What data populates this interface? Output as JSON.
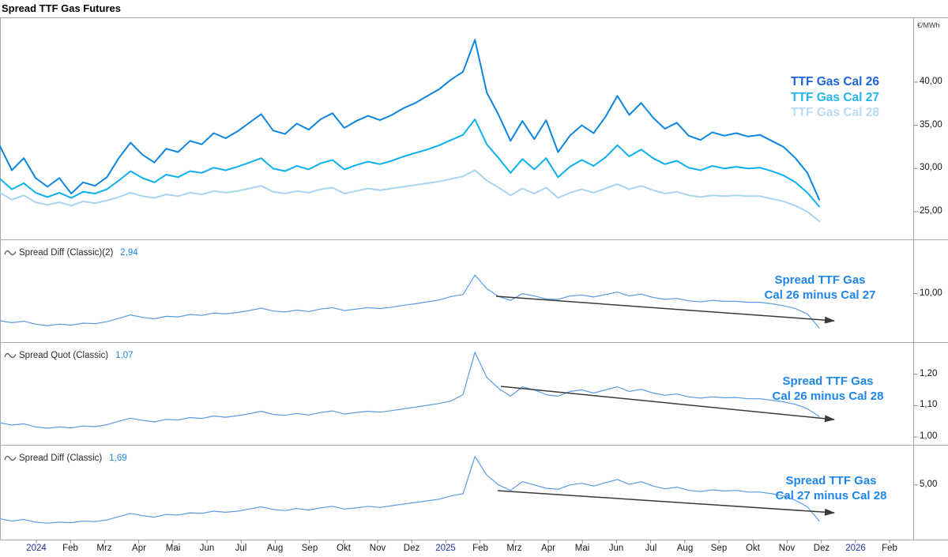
{
  "title": "Spread TTF Gas Futures",
  "colors": {
    "cal26_line": "#0d86e2",
    "cal27_line": "#0ab0ef",
    "cal28_line": "#a9d4ef",
    "spread_line": "#5b9ce4",
    "annotation_blue": "#1e86e8",
    "value_blue": "#1e86e8",
    "arrow": "#3a3a3a",
    "border": "#a8a8a8",
    "tick": "#888888",
    "year_label": "#2433a2",
    "month_label": "#1a1a1a"
  },
  "legend": {
    "items": [
      {
        "label": "TTF Gas Cal 26"
      },
      {
        "label": "TTF Gas Cal 27"
      },
      {
        "label": "TTF Gas Cal 28"
      }
    ]
  },
  "x_axis": {
    "labels": [
      "2024",
      "Feb",
      "Mrz",
      "Apr",
      "Mai",
      "Jun",
      "Jul",
      "Aug",
      "Sep",
      "Okt",
      "Nov",
      "Dez",
      "2025",
      "Feb",
      "Mrz",
      "Apr",
      "Mai",
      "Jun",
      "Jul",
      "Aug",
      "Sep",
      "Okt",
      "Nov",
      "Dez",
      "2026",
      "Feb"
    ]
  },
  "chart_data": [
    {
      "type": "line",
      "ylabel": "€/MWh",
      "ylim": [
        21.8,
        47.4
      ],
      "yticks": [
        {
          "label": "40,00",
          "value": 40
        },
        {
          "label": "35,00",
          "value": 35
        },
        {
          "label": "30,00",
          "value": 30
        },
        {
          "label": "25,00",
          "value": 25
        }
      ],
      "series": [
        {
          "id": "ttf-gas-cal-28",
          "name": "TTF Gas Cal 28",
          "color": "#a9d4ef",
          "legend_color": "#b9dcf4",
          "width": 2,
          "values": [
            27.2,
            26.4,
            26.9,
            26.1,
            25.8,
            26.1,
            25.7,
            26.2,
            26.0,
            26.3,
            26.7,
            27.2,
            26.8,
            26.6,
            27.0,
            26.8,
            27.2,
            27.0,
            27.4,
            27.2,
            27.4,
            27.7,
            28.0,
            27.3,
            27.1,
            27.4,
            27.2,
            27.6,
            27.8,
            27.1,
            27.4,
            27.7,
            27.5,
            27.7,
            27.9,
            28.1,
            28.3,
            28.5,
            28.8,
            29.1,
            29.8,
            28.6,
            27.8,
            26.9,
            27.7,
            27.1,
            27.8,
            26.6,
            27.2,
            27.6,
            27.2,
            27.7,
            28.2,
            27.6,
            28.0,
            27.5,
            27.1,
            27.3,
            26.9,
            26.7,
            26.9,
            26.8,
            26.9,
            26.8,
            26.8,
            26.5,
            26.2,
            25.7,
            25.0,
            23.9
          ]
        },
        {
          "id": "ttf-gas-cal-27",
          "name": "TTF Gas Cal 27",
          "color": "#0ab0ef",
          "legend_color": "#22b7f2",
          "width": 2,
          "values": [
            28.8,
            27.6,
            28.3,
            27.2,
            26.7,
            27.2,
            26.6,
            27.3,
            27.1,
            27.6,
            28.6,
            29.7,
            28.9,
            28.4,
            29.3,
            29.0,
            29.7,
            29.5,
            30.1,
            29.8,
            30.2,
            30.7,
            31.2,
            30.0,
            29.7,
            30.3,
            29.9,
            30.6,
            31.0,
            29.9,
            30.4,
            30.8,
            30.5,
            30.9,
            31.4,
            31.8,
            32.2,
            32.7,
            33.3,
            33.9,
            35.7,
            32.8,
            31.2,
            29.5,
            31.1,
            29.9,
            31.2,
            29.0,
            30.2,
            31.0,
            30.3,
            31.3,
            32.7,
            31.4,
            32.2,
            31.2,
            30.5,
            30.9,
            30.1,
            29.8,
            30.3,
            30.0,
            30.2,
            30.0,
            30.1,
            29.7,
            29.2,
            28.4,
            27.2,
            25.6
          ]
        },
        {
          "id": "ttf-gas-cal-26",
          "name": "TTF Gas Cal 26",
          "color": "#0d86e2",
          "legend_color": "#1a66d9",
          "width": 2,
          "values": [
            32.6,
            29.8,
            31.2,
            28.9,
            27.9,
            28.9,
            27.1,
            28.4,
            28.0,
            29.0,
            31.2,
            33.0,
            31.6,
            30.7,
            32.3,
            31.9,
            33.2,
            32.8,
            34.1,
            33.5,
            34.3,
            35.3,
            36.3,
            34.4,
            34.0,
            35.2,
            34.5,
            35.7,
            36.4,
            34.7,
            35.5,
            36.1,
            35.6,
            36.2,
            37.0,
            37.6,
            38.4,
            39.2,
            40.3,
            41.2,
            44.9,
            38.8,
            36.2,
            33.2,
            35.5,
            33.4,
            35.6,
            31.9,
            33.8,
            35.0,
            34.1,
            36.0,
            38.4,
            36.2,
            37.6,
            35.9,
            34.6,
            35.3,
            33.8,
            33.3,
            34.2,
            33.8,
            34.1,
            33.7,
            33.9,
            33.2,
            32.5,
            31.2,
            29.5,
            26.4
          ]
        }
      ]
    },
    {
      "type": "line",
      "header": {
        "label": "Spread Diff (Classic)(2)",
        "value": "2,94"
      },
      "annotation": {
        "line1": "Spread TTF Gas",
        "line2": "Cal 26 minus Cal 27"
      },
      "ylim": [
        0,
        21
      ],
      "yticks": [
        {
          "label": "10,00",
          "value": 10
        }
      ],
      "trend_arrow": {
        "x1": 628,
        "y1": 375,
        "x2": 1056,
        "y2": 406
      },
      "series": [
        {
          "id": "spread-cal26-cal27",
          "name": "Spread Cal 26 minus Cal 27",
          "color": "#5b9ce4",
          "width": 1.2,
          "values": [
            4.4,
            4.0,
            4.3,
            3.7,
            3.4,
            3.7,
            3.5,
            3.9,
            3.8,
            4.2,
            4.9,
            5.6,
            5.1,
            4.8,
            5.3,
            5.2,
            5.7,
            5.5,
            6.0,
            5.8,
            6.1,
            6.5,
            7.0,
            6.4,
            6.2,
            6.6,
            6.3,
            6.8,
            7.1,
            6.5,
            6.8,
            7.1,
            6.9,
            7.2,
            7.6,
            7.9,
            8.3,
            8.7,
            9.4,
            9.8,
            13.8,
            11.0,
            9.4,
            8.6,
            10.0,
            9.5,
            8.9,
            8.8,
            9.5,
            9.7,
            9.3,
            9.8,
            10.3,
            9.5,
            9.9,
            9.2,
            8.8,
            9.0,
            8.5,
            8.3,
            8.6,
            8.4,
            8.4,
            8.2,
            8.2,
            7.9,
            7.5,
            6.9,
            5.8,
            2.9
          ]
        }
      ]
    },
    {
      "type": "line",
      "header": {
        "label": "Spread Quot (Classic)",
        "value": "1,07"
      },
      "annotation": {
        "line1": "Spread TTF Gas",
        "line2": "Cal 26 minus Cal 28"
      },
      "ylim": [
        0.975,
        1.3
      ],
      "yticks": [
        {
          "label": "1,20",
          "value": 1.2
        },
        {
          "label": "1,10",
          "value": 1.1
        },
        {
          "label": "1,00",
          "value": 1.0
        }
      ],
      "trend_arrow": {
        "x1": 634,
        "y1": 489,
        "x2": 1056,
        "y2": 531
      },
      "series": [
        {
          "id": "spread-quot-cal26-cal28",
          "name": "Spread Quot Cal 26 / Cal 28",
          "color": "#5b9ce4",
          "width": 1.2,
          "values": [
            1.045,
            1.038,
            1.042,
            1.032,
            1.028,
            1.032,
            1.029,
            1.035,
            1.033,
            1.039,
            1.05,
            1.06,
            1.053,
            1.048,
            1.056,
            1.054,
            1.062,
            1.059,
            1.067,
            1.063,
            1.068,
            1.074,
            1.082,
            1.072,
            1.069,
            1.075,
            1.07,
            1.078,
            1.083,
            1.073,
            1.078,
            1.082,
            1.079,
            1.084,
            1.09,
            1.095,
            1.101,
            1.107,
            1.115,
            1.135,
            1.27,
            1.19,
            1.155,
            1.13,
            1.16,
            1.15,
            1.135,
            1.13,
            1.145,
            1.15,
            1.14,
            1.15,
            1.16,
            1.145,
            1.152,
            1.14,
            1.133,
            1.137,
            1.128,
            1.124,
            1.128,
            1.125,
            1.126,
            1.122,
            1.122,
            1.117,
            1.112,
            1.104,
            1.09,
            1.065
          ]
        }
      ]
    },
    {
      "type": "line",
      "header": {
        "label": "Spread Diff (Classic)",
        "value": "1,69"
      },
      "annotation": {
        "line1": "Spread TTF Gas",
        "line2": "Cal 27 minus Cal 28"
      },
      "ylim": [
        0,
        8.6
      ],
      "yticks": [
        {
          "label": "5,00",
          "value": 5
        }
      ],
      "trend_arrow": {
        "x1": 630,
        "y1": 621,
        "x2": 1056,
        "y2": 649
      },
      "series": [
        {
          "id": "spread-cal27-cal28",
          "name": "Spread Cal 27 minus Cal 28",
          "color": "#5b9ce4",
          "width": 1.2,
          "values": [
            1.9,
            1.7,
            1.85,
            1.6,
            1.5,
            1.6,
            1.55,
            1.7,
            1.65,
            1.8,
            2.1,
            2.4,
            2.2,
            2.05,
            2.3,
            2.25,
            2.45,
            2.4,
            2.6,
            2.5,
            2.6,
            2.8,
            3.0,
            2.75,
            2.65,
            2.85,
            2.7,
            2.9,
            3.05,
            2.8,
            2.9,
            3.05,
            2.95,
            3.1,
            3.25,
            3.4,
            3.55,
            3.7,
            4.0,
            4.2,
            7.6,
            5.9,
            5.0,
            4.5,
            5.3,
            5.0,
            4.7,
            4.6,
            5.0,
            5.15,
            4.9,
            5.2,
            5.5,
            5.05,
            5.3,
            4.9,
            4.65,
            4.8,
            4.5,
            4.4,
            4.55,
            4.45,
            4.5,
            4.35,
            4.35,
            4.2,
            4.0,
            3.6,
            3.0,
            1.69
          ]
        }
      ]
    }
  ]
}
